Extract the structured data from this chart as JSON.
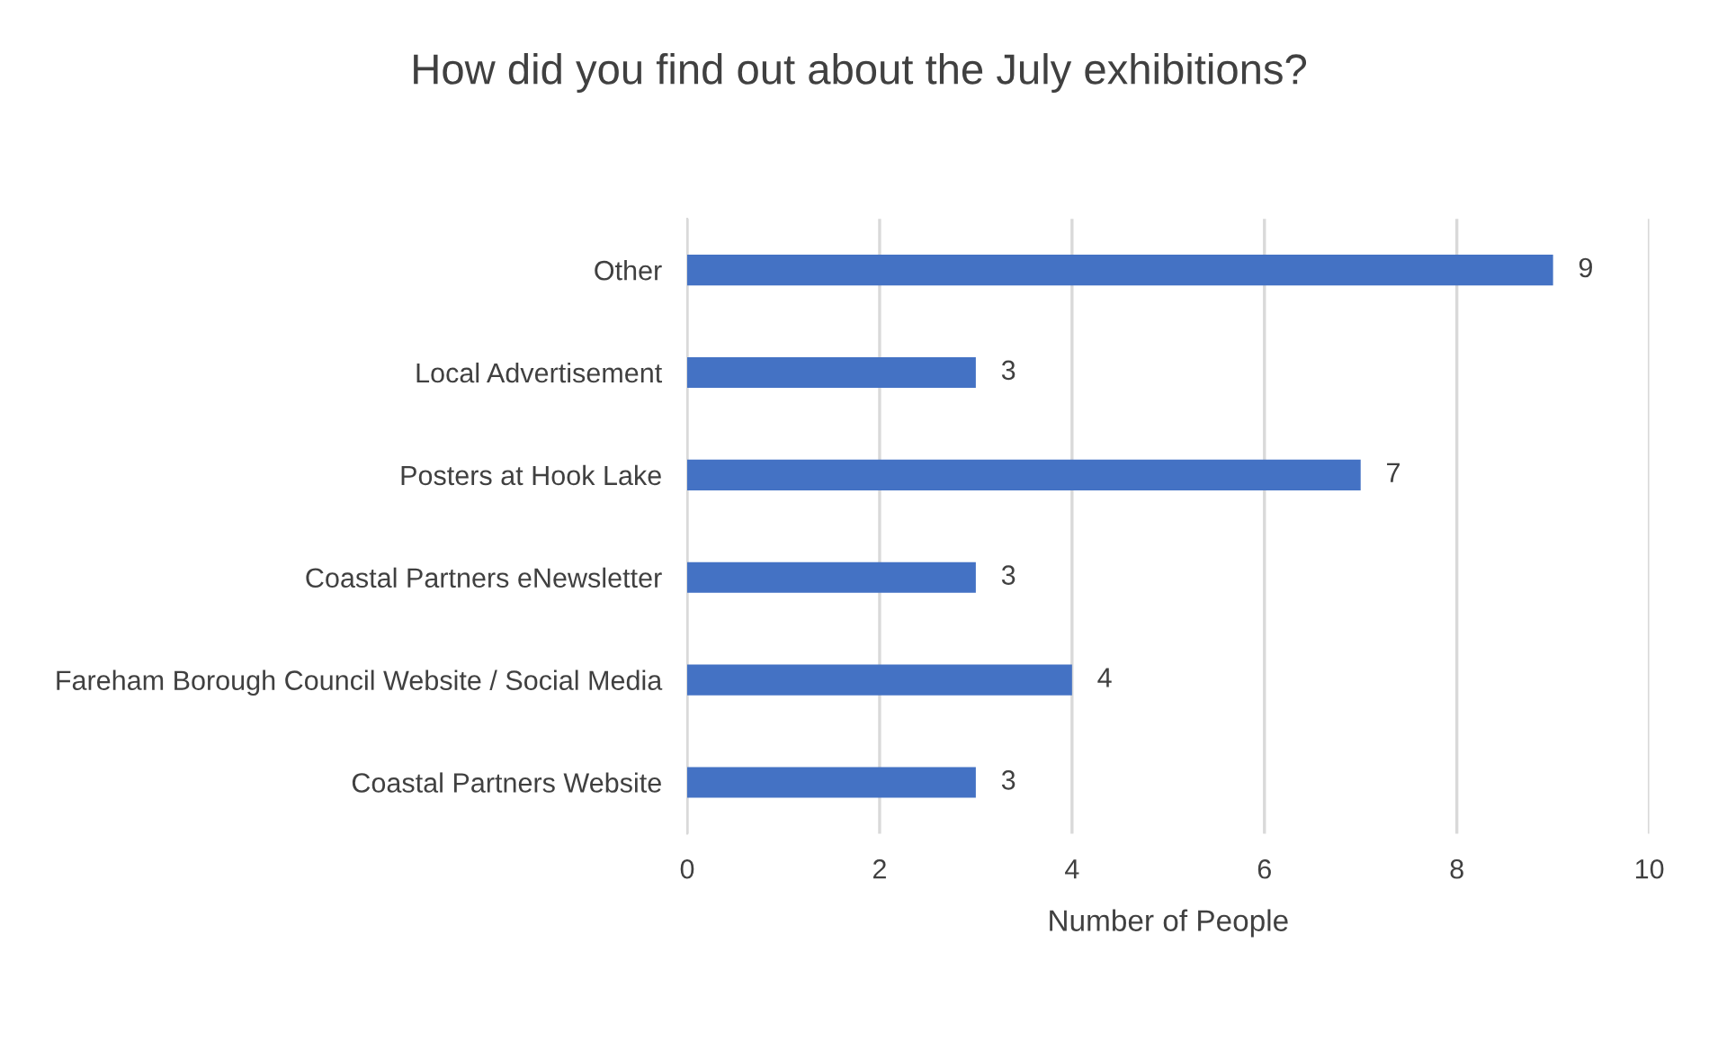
{
  "chart_data": {
    "type": "bar",
    "orientation": "horizontal",
    "title": "How did you find out about the July exhibitions?",
    "xlabel": "Number of People",
    "categories": [
      "Other",
      "Local Advertisement",
      "Posters at Hook Lake",
      "Coastal Partners eNewsletter",
      "Fareham Borough Council Website / Social Media",
      "Coastal Partners Website"
    ],
    "values": [
      9,
      3,
      7,
      3,
      4,
      3
    ],
    "color": "#4472c4",
    "xlim": [
      0,
      10
    ],
    "xticks": [
      0,
      2,
      4,
      6,
      8,
      10
    ],
    "grid": "x",
    "data_labels": true
  }
}
